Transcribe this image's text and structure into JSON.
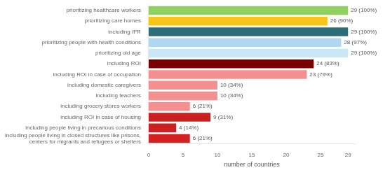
{
  "chart_data": {
    "type": "bar",
    "orientation": "horizontal",
    "categories": [
      "including people living in closed structures like prisons,\ncenters for migrants and refugees or shelters",
      "including people living in precarious conditions",
      "including ROI in case of housing",
      "including grocery stores workers",
      "including teachers",
      "including domestic caregivers",
      "including ROI in case of occupation",
      "including ROI",
      "prioritizing old age",
      "prioritizing people with health conditions",
      "including IFR",
      "prioritizing care homes",
      "prioritizing healthcare workers"
    ],
    "values": [
      6,
      4,
      9,
      6,
      10,
      10,
      23,
      24,
      29,
      28,
      29,
      26,
      29
    ],
    "value_labels": [
      "6 (21%)",
      "4 (14%)",
      "9 (31%)",
      "6 (21%)",
      "10 (34%)",
      "10 (34%)",
      "23 (79%)",
      "24 (83%)",
      "29 (100%)",
      "28 (97%)",
      "29 (100%)",
      "26 (90%)",
      "29 (100%)"
    ],
    "data_labels": true,
    "colors": [
      "#d42020",
      "#cc1f1f",
      "#cc1f1f",
      "#f59090",
      "#f59090",
      "#f59090",
      "#f59090",
      "#7a0000",
      "#c8e8f5",
      "#b0d8f0",
      "#2b6e7a",
      "#f5c518",
      "#90d060"
    ],
    "xlabel": "number of countries",
    "xlim": [
      0,
      30
    ],
    "xticks": [
      0,
      5,
      10,
      15,
      20,
      25,
      29
    ],
    "grid": false
  }
}
